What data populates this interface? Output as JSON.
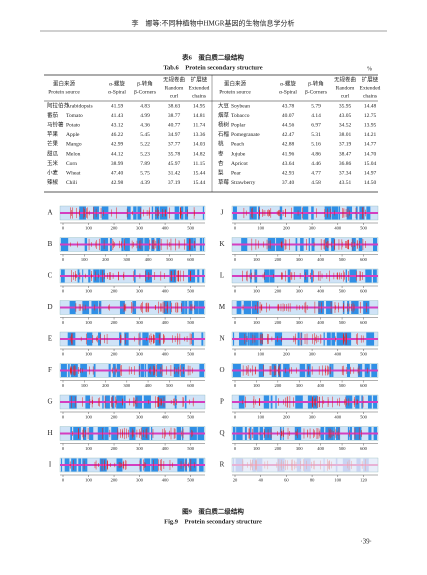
{
  "header": {
    "running_title": "李　娜等:不同种植物中HMGR基因的生物信息学分析"
  },
  "table": {
    "title_cn": "表6　蛋白质二级结构",
    "title_en": "Tab.6　Protein secondary structure",
    "unit": "%",
    "columns": [
      [
        "蛋白来源",
        "Protein source"
      ],
      [
        "α-螺旋",
        "α-Spiral"
      ],
      [
        "β-转角",
        "β-Corners"
      ],
      [
        "无规卷曲",
        "Random",
        "curl"
      ],
      [
        "扩展链",
        "Extended",
        "chains"
      ]
    ],
    "left_rows": [
      [
        "阿拉伯芥",
        "Arabidopsis",
        "41.59",
        "4.83",
        "38.63",
        "14.95"
      ],
      [
        "番茄",
        "Tomato",
        "41.43",
        "4.99",
        "38.77",
        "14.81"
      ],
      [
        "马铃薯",
        "Potato",
        "43.12",
        "4.36",
        "40.77",
        "11.74"
      ],
      [
        "苹果",
        "Apple",
        "46.22",
        "5.45",
        "34.97",
        "13.36"
      ],
      [
        "芒果",
        "Mango",
        "42.99",
        "5.22",
        "37.77",
        "14.03"
      ],
      [
        "甜瓜",
        "Melon",
        "44.12",
        "5.23",
        "35.78",
        "14.82"
      ],
      [
        "玉米",
        "Corn",
        "38.99",
        "7.89",
        "45.97",
        "11.15"
      ],
      [
        "小麦",
        "Wheat",
        "47.40",
        "5.75",
        "31.42",
        "15.44"
      ],
      [
        "辣椒",
        "Chili",
        "42.98",
        "4.39",
        "37.19",
        "15.44"
      ]
    ],
    "right_rows": [
      [
        "大豆",
        "Soybean",
        "43.78",
        "5.79",
        "35.95",
        "14.48"
      ],
      [
        "烟草",
        "Tobacco",
        "40.07",
        "4.14",
        "43.05",
        "12.75"
      ],
      [
        "杨树",
        "Poplar",
        "44.56",
        "6.97",
        "34.52",
        "13.95"
      ],
      [
        "石榴",
        "Pomegranate",
        "42.47",
        "5.31",
        "38.01",
        "14.21"
      ],
      [
        "桃",
        "Peach",
        "42.88",
        "5.16",
        "37.19",
        "14.77"
      ],
      [
        "枣",
        "Jujube",
        "41.96",
        "4.86",
        "38.47",
        "14.70"
      ],
      [
        "杏",
        "Apricot",
        "43.64",
        "4.46",
        "36.86",
        "15.04"
      ],
      [
        "梨",
        "Pear",
        "42.93",
        "4.77",
        "37.34",
        "14.97"
      ],
      [
        "草莓",
        "Strawberry",
        "37.40",
        "4.58",
        "43.51",
        "14.50"
      ]
    ]
  },
  "figure": {
    "panels": [
      {
        "label": "A",
        "ticks": [
          "0",
          "100",
          "200",
          "300",
          "400",
          "500"
        ]
      },
      {
        "label": "B",
        "ticks": [
          "0",
          "100",
          "200",
          "300",
          "400",
          "500",
          "600"
        ]
      },
      {
        "label": "C",
        "ticks": [
          "0",
          "100",
          "200",
          "300",
          "400",
          "500"
        ]
      },
      {
        "label": "D",
        "ticks": [
          "0",
          "100",
          "200",
          "300",
          "400",
          "500"
        ]
      },
      {
        "label": "E",
        "ticks": [
          "0",
          "100",
          "200",
          "300",
          "400",
          "500"
        ]
      },
      {
        "label": "F",
        "ticks": [
          "0",
          "100",
          "200",
          "300",
          "400",
          "500",
          "600"
        ]
      },
      {
        "label": "G",
        "ticks": [
          "0",
          "100",
          "200",
          "300",
          "400",
          "500"
        ]
      },
      {
        "label": "H",
        "ticks": [
          "0",
          "100",
          "200",
          "300",
          "400",
          "500"
        ]
      },
      {
        "label": "I",
        "ticks": [
          "0",
          "100",
          "200",
          "300",
          "400",
          "500"
        ]
      },
      {
        "label": "J",
        "ticks": [
          "0",
          "100",
          "200",
          "300",
          "400",
          "500"
        ]
      },
      {
        "label": "K",
        "ticks": [
          "0",
          "100",
          "200",
          "300",
          "400",
          "500",
          "600"
        ]
      },
      {
        "label": "L",
        "ticks": [
          "0",
          "100",
          "200",
          "300",
          "400",
          "500",
          "600"
        ]
      },
      {
        "label": "M",
        "ticks": [
          "0",
          "100",
          "200",
          "300",
          "400",
          "500",
          "600"
        ]
      },
      {
        "label": "N",
        "ticks": [
          "0",
          "100",
          "200",
          "300",
          "400",
          "500"
        ]
      },
      {
        "label": "O",
        "ticks": [
          "0",
          "100",
          "200",
          "300",
          "400",
          "500",
          "600"
        ]
      },
      {
        "label": "P",
        "ticks": [
          "0",
          "100",
          "200",
          "300",
          "400",
          "500"
        ]
      },
      {
        "label": "Q",
        "ticks": [
          "0",
          "100",
          "200",
          "300",
          "400",
          "500",
          "600"
        ]
      },
      {
        "label": "R",
        "ticks": [
          "20",
          "40",
          "60",
          "80",
          "100",
          "120"
        ]
      }
    ],
    "caption_cn": "图9　蛋白质二级结构",
    "caption_en": "Fig.9　Protein secondary structure"
  },
  "page_number": "·39·"
}
